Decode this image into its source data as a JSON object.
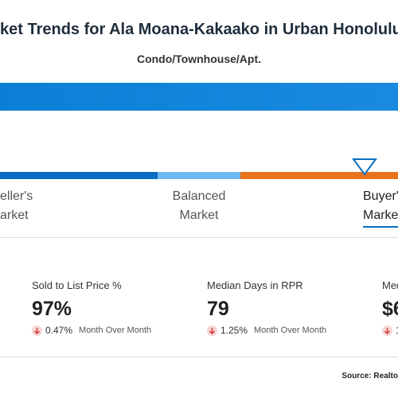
{
  "header": {
    "title": "ket Trends for Ala Moana-Kakaako in Urban Honolulu",
    "subtitle": "Condo/Townhouse/Apt."
  },
  "scale": {
    "labels": [
      {
        "line1": "eller's",
        "line2": "arket"
      },
      {
        "line1": "Balanced",
        "line2": "Market"
      },
      {
        "line1": "Buyer'",
        "line2": "Market"
      }
    ]
  },
  "metrics": [
    {
      "label": "Sold to List Price %",
      "value": "97%",
      "change": "0.47%",
      "period": "Month Over Month"
    },
    {
      "label": "Median Days in RPR",
      "value": "79",
      "change": "1.25%",
      "period": "Month Over Month"
    },
    {
      "label": "Med",
      "value": "$6",
      "change": "1"
    }
  ],
  "footer": {
    "source": "Source: Realto"
  }
}
